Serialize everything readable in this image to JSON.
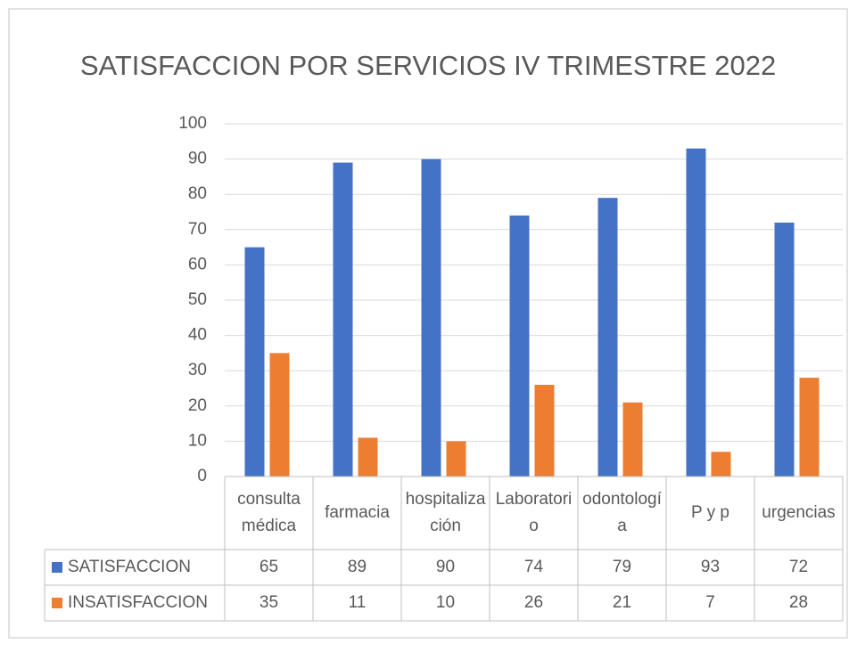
{
  "chart_data": {
    "type": "bar",
    "title": "SATISFACCION POR SERVICIOS IV TRIMESTRE 2022",
    "categories": [
      "consulta médica",
      "farmacia",
      "hospitalización",
      "Laboratorio",
      "odontología",
      "P y p",
      "urgencias"
    ],
    "series": [
      {
        "name": "SATISFACCION",
        "color": "#4472c4",
        "values": [
          65,
          89,
          90,
          74,
          79,
          93,
          72
        ]
      },
      {
        "name": "INSATISFACCION",
        "color": "#ed7d31",
        "values": [
          35,
          11,
          10,
          26,
          21,
          7,
          28
        ]
      }
    ],
    "ylim": [
      0,
      100
    ],
    "yticks": [
      0,
      10,
      20,
      30,
      40,
      50,
      60,
      70,
      80,
      90,
      100
    ],
    "grid": true
  }
}
